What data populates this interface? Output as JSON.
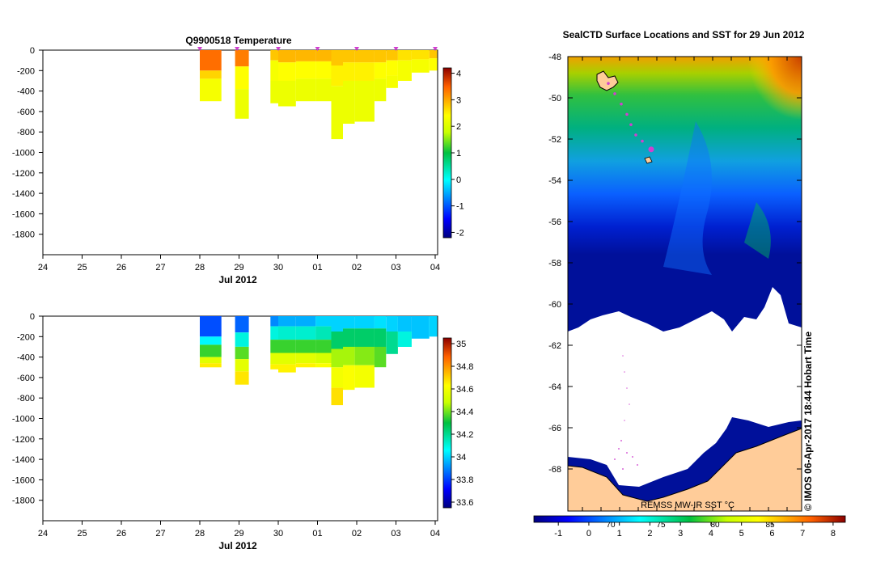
{
  "chart_data": [
    {
      "type": "heatmap",
      "title": "Q9900518  Temperature",
      "xlabel": "Jul 2012",
      "ylabel": "",
      "x_ticks": [
        "24",
        "25",
        "26",
        "27",
        "28",
        "29",
        "30",
        "01",
        "02",
        "03",
        "04"
      ],
      "y_ticks": [
        0,
        -200,
        -400,
        -600,
        -800,
        -1000,
        -1200,
        -1400,
        -1600,
        -1800
      ],
      "ylim": [
        -2000,
        0
      ],
      "colorbar": {
        "ticks": [
          4,
          3,
          2,
          1,
          0,
          -1,
          -2
        ],
        "range": [
          -2.2,
          4.2
        ]
      },
      "profiles": [
        {
          "x": 28.0,
          "w": 0.55,
          "depth": 500,
          "bands": [
            [
              0,
              200,
              3.4
            ],
            [
              200,
              280,
              2.7
            ],
            [
              280,
              500,
              2.3
            ]
          ]
        },
        {
          "x": 28.9,
          "w": 0.35,
          "depth": 670,
          "bands": [
            [
              0,
              160,
              3.3
            ],
            [
              160,
              380,
              2.4
            ],
            [
              380,
              670,
              2.2
            ]
          ]
        },
        {
          "x": 29.8,
          "w": 0.2,
          "depth": 520,
          "bands": [
            [
              0,
              100,
              2.8
            ],
            [
              100,
              300,
              2.3
            ],
            [
              300,
              520,
              2.2
            ]
          ]
        },
        {
          "x": 30.0,
          "w": 0.45,
          "depth": 550,
          "bands": [
            [
              0,
              120,
              2.9
            ],
            [
              120,
              300,
              2.4
            ],
            [
              300,
              550,
              2.2
            ]
          ]
        },
        {
          "x": 30.45,
          "w": 0.5,
          "depth": 500,
          "bands": [
            [
              0,
              110,
              2.9
            ],
            [
              110,
              280,
              2.4
            ],
            [
              280,
              500,
              2.2
            ]
          ]
        },
        {
          "x": 30.95,
          "w": 0.4,
          "depth": 500,
          "bands": [
            [
              0,
              110,
              2.9
            ],
            [
              110,
              280,
              2.4
            ],
            [
              280,
              500,
              2.2
            ]
          ]
        },
        {
          "x": 31.35,
          "w": 0.3,
          "depth": 870,
          "bands": [
            [
              0,
              150,
              2.8
            ],
            [
              150,
              350,
              2.5
            ],
            [
              350,
              870,
              2.2
            ]
          ]
        },
        {
          "x": 31.65,
          "w": 0.3,
          "depth": 720,
          "bands": [
            [
              0,
              120,
              2.8
            ],
            [
              120,
              300,
              2.5
            ],
            [
              300,
              720,
              2.2
            ]
          ]
        },
        {
          "x": 31.95,
          "w": 0.5,
          "depth": 700,
          "bands": [
            [
              0,
              120,
              2.8
            ],
            [
              120,
              300,
              2.5
            ],
            [
              300,
              700,
              2.2
            ]
          ]
        },
        {
          "x": 32.45,
          "w": 0.3,
          "depth": 500,
          "bands": [
            [
              0,
              120,
              2.8
            ],
            [
              120,
              280,
              2.4
            ],
            [
              280,
              500,
              2.2
            ]
          ]
        },
        {
          "x": 32.75,
          "w": 0.3,
          "depth": 370,
          "bands": [
            [
              0,
              100,
              2.8
            ],
            [
              100,
              250,
              2.4
            ],
            [
              250,
              370,
              2.3
            ]
          ]
        },
        {
          "x": 33.05,
          "w": 0.35,
          "depth": 300,
          "bands": [
            [
              0,
              100,
              2.6
            ],
            [
              100,
              300,
              2.3
            ]
          ]
        },
        {
          "x": 33.4,
          "w": 0.45,
          "depth": 220,
          "bands": [
            [
              0,
              90,
              2.6
            ],
            [
              90,
              220,
              2.3
            ]
          ]
        },
        {
          "x": 33.85,
          "w": 0.2,
          "depth": 200,
          "bands": [
            [
              0,
              80,
              2.8
            ],
            [
              80,
              200,
              2.4
            ]
          ]
        }
      ],
      "surface_markers": [
        28.0,
        28.95,
        30.0,
        31.0,
        32.0,
        33.0,
        34.0
      ]
    },
    {
      "type": "heatmap",
      "title": "",
      "xlabel": "Jul 2012",
      "ylabel": "",
      "x_ticks": [
        "24",
        "25",
        "26",
        "27",
        "28",
        "29",
        "30",
        "01",
        "02",
        "03",
        "04"
      ],
      "y_ticks": [
        0,
        -200,
        -400,
        -600,
        -800,
        -1000,
        -1200,
        -1400,
        -1600,
        -1800
      ],
      "ylim": [
        -2000,
        0
      ],
      "colorbar": {
        "ticks": [
          35,
          34.8,
          34.6,
          34.4,
          34.2,
          34,
          33.8,
          33.6
        ],
        "range": [
          33.55,
          35.05
        ]
      },
      "profiles": [
        {
          "x": 28.0,
          "w": 0.55,
          "depth": 500,
          "bands": [
            [
              0,
              200,
              33.82
            ],
            [
              200,
              280,
              34.05
            ],
            [
              280,
              400,
              34.35
            ],
            [
              400,
              460,
              34.55
            ],
            [
              460,
              500,
              34.66
            ]
          ]
        },
        {
          "x": 28.9,
          "w": 0.35,
          "depth": 670,
          "bands": [
            [
              0,
              160,
              33.85
            ],
            [
              160,
              300,
              34.1
            ],
            [
              300,
              420,
              34.38
            ],
            [
              420,
              540,
              34.56
            ],
            [
              540,
              670,
              34.67
            ]
          ]
        },
        {
          "x": 29.8,
          "w": 0.2,
          "depth": 520,
          "bands": [
            [
              0,
              100,
              33.9
            ],
            [
              100,
              230,
              34.1
            ],
            [
              230,
              360,
              34.35
            ],
            [
              360,
              470,
              34.55
            ],
            [
              470,
              520,
              34.65
            ]
          ]
        },
        {
          "x": 30.0,
          "w": 0.45,
          "depth": 550,
          "bands": [
            [
              0,
              100,
              33.95
            ],
            [
              100,
              230,
              34.12
            ],
            [
              230,
              360,
              34.35
            ],
            [
              360,
              470,
              34.55
            ],
            [
              470,
              550,
              34.65
            ]
          ]
        },
        {
          "x": 30.45,
          "w": 0.5,
          "depth": 500,
          "bands": [
            [
              0,
              100,
              33.95
            ],
            [
              100,
              230,
              34.12
            ],
            [
              230,
              360,
              34.35
            ],
            [
              360,
              460,
              34.55
            ],
            [
              460,
              500,
              34.65
            ]
          ]
        },
        {
          "x": 30.95,
          "w": 0.4,
          "depth": 500,
          "bands": [
            [
              0,
              100,
              34.0
            ],
            [
              100,
              230,
              34.15
            ],
            [
              230,
              360,
              34.35
            ],
            [
              360,
              460,
              34.52
            ],
            [
              460,
              500,
              34.62
            ]
          ]
        },
        {
          "x": 31.35,
          "w": 0.3,
          "depth": 870,
          "bands": [
            [
              0,
              150,
              34.0
            ],
            [
              150,
              320,
              34.25
            ],
            [
              320,
              500,
              34.45
            ],
            [
              500,
              700,
              34.6
            ],
            [
              700,
              870,
              34.68
            ]
          ]
        },
        {
          "x": 31.65,
          "w": 0.3,
          "depth": 720,
          "bands": [
            [
              0,
              120,
              34.0
            ],
            [
              120,
              300,
              34.25
            ],
            [
              300,
              480,
              34.45
            ],
            [
              480,
              720,
              34.62
            ]
          ]
        },
        {
          "x": 31.95,
          "w": 0.5,
          "depth": 700,
          "bands": [
            [
              0,
              120,
              34.0
            ],
            [
              120,
              300,
              34.25
            ],
            [
              300,
              480,
              34.42
            ],
            [
              480,
              700,
              34.6
            ]
          ]
        },
        {
          "x": 32.45,
          "w": 0.3,
          "depth": 500,
          "bands": [
            [
              0,
              120,
              34.02
            ],
            [
              120,
              300,
              34.25
            ],
            [
              300,
              500,
              34.38
            ]
          ]
        },
        {
          "x": 32.75,
          "w": 0.3,
          "depth": 370,
          "bands": [
            [
              0,
              150,
              34.0
            ],
            [
              150,
              370,
              34.2
            ]
          ]
        },
        {
          "x": 33.05,
          "w": 0.35,
          "depth": 300,
          "bands": [
            [
              0,
              150,
              33.98
            ],
            [
              150,
              300,
              34.1
            ]
          ]
        },
        {
          "x": 33.4,
          "w": 0.45,
          "depth": 220,
          "bands": [
            [
              0,
              220,
              33.98
            ]
          ]
        },
        {
          "x": 33.85,
          "w": 0.2,
          "depth": 200,
          "bands": [
            [
              0,
              200,
              34.0
            ]
          ]
        }
      ],
      "surface_markers": []
    }
  ],
  "map": {
    "title": "SealCTD Surface Locations and SST for 29 Jun 2012",
    "lat_ticks": [
      "-48",
      "-50",
      "-52",
      "-54",
      "-56",
      "-58",
      "-60",
      "-62",
      "-64",
      "-66",
      "-68"
    ],
    "overlay_ticks": [
      "70",
      "75",
      "80",
      "85"
    ],
    "inset_label": "REMSS MW-IR SST °C",
    "side_label": "© IMOS 06-Apr-2017 18:44 Hobart Time",
    "colorbar": {
      "ticks": [
        "-1",
        "0",
        "1",
        "2",
        "3",
        "4",
        "5",
        "6",
        "7",
        "8"
      ],
      "range": [
        -1.8,
        8.4
      ]
    },
    "track_points_lat": [
      -49.3,
      -49.8,
      -50.3,
      -50.8,
      -51.3,
      -51.8,
      -52.1,
      -52.5
    ],
    "latest_point_lat": -52.5
  },
  "colors": {
    "marker": "#d040d0",
    "land": "#ffcc99"
  }
}
